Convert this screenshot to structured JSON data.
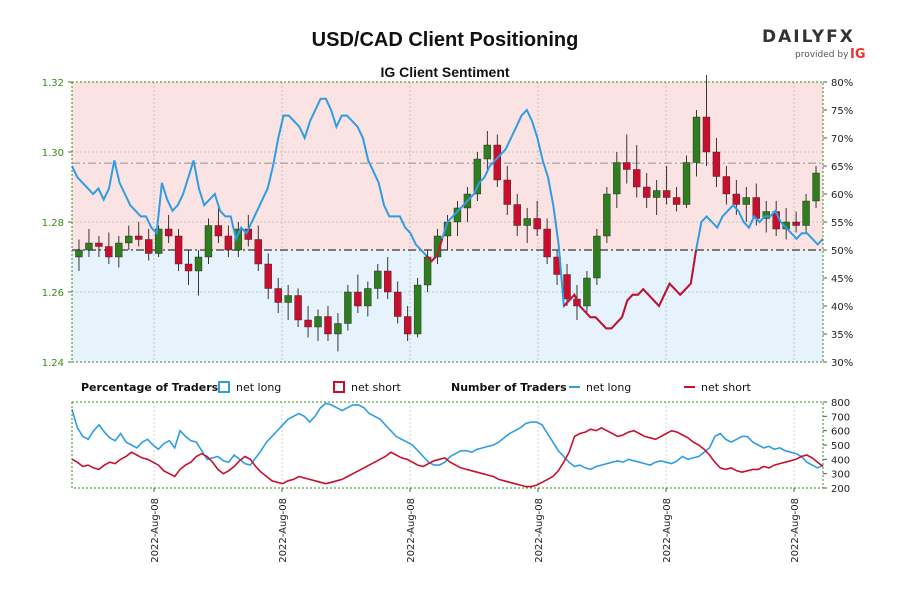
{
  "brand": {
    "logo_text": "DAILYFX",
    "provided_by": "provided by",
    "provider": "IG"
  },
  "chart_data": [
    {
      "type": "candlestick+line",
      "title": "USD/CAD Client Positioning",
      "subtitle": "IG Client Sentiment",
      "left_axis": {
        "ticks": [
          "1.24",
          "1.26",
          "1.28",
          "1.30",
          "1.32"
        ],
        "range": [
          1.24,
          1.32
        ]
      },
      "right_axis": {
        "ticks": [
          "30%",
          "35%",
          "40%",
          "45%",
          "50%",
          "55%",
          "60%",
          "65%",
          "70%",
          "75%",
          "80%"
        ],
        "range": [
          30,
          80
        ]
      },
      "x_ticks": [
        "2022-Aug-08",
        "2022-Aug-08",
        "2022-Aug-08",
        "2022-Aug-08",
        "2022-Aug-08",
        "2022-Aug-08"
      ],
      "reference_lines": {
        "upper_pct": 65.5,
        "mid_pct": 50
      },
      "colors": {
        "net_long": "#2e9de4",
        "net_short": "#c8102e",
        "up": "#2e7d1e",
        "down": "#c8102e",
        "long_zone": "#e6f3fc",
        "short_zone": "#fbe3e3"
      },
      "net_long_pct": [
        65,
        63,
        62,
        61,
        60,
        61,
        59,
        61,
        66,
        62,
        60,
        58,
        57,
        56,
        56,
        54,
        53,
        62,
        59,
        57,
        58,
        60,
        63,
        66,
        61,
        58,
        59,
        60,
        57,
        56,
        56,
        52,
        54,
        53,
        55,
        57,
        59,
        61,
        65,
        70,
        74,
        74,
        73,
        72,
        70,
        73,
        75,
        77,
        77,
        75,
        72,
        74,
        74,
        73,
        72,
        70,
        66,
        64,
        62,
        58,
        56,
        56,
        56,
        54,
        53,
        51,
        50,
        49,
        48,
        49,
        52,
        55,
        56,
        57,
        58,
        59,
        60,
        62,
        63,
        65,
        66,
        67,
        68,
        70,
        72,
        74,
        75,
        73,
        70,
        66,
        63,
        58,
        51,
        40,
        41,
        42,
        40,
        39,
        38,
        38,
        37,
        36,
        36,
        37,
        38,
        41,
        42,
        42,
        43,
        42,
        41,
        40,
        42,
        44,
        43,
        42,
        43,
        44,
        50,
        55,
        56,
        55,
        54,
        56,
        57,
        58,
        57,
        55,
        54,
        56,
        55,
        56,
        56,
        57,
        55,
        54,
        53,
        52,
        53,
        53,
        52,
        51,
        52
      ],
      "net_long_count": [
        750,
        620,
        560,
        540,
        600,
        640,
        590,
        550,
        530,
        580,
        520,
        500,
        480,
        520,
        540,
        500,
        470,
        510,
        530,
        480,
        600,
        560,
        530,
        520,
        460,
        400,
        410,
        420,
        390,
        380,
        430,
        400,
        370,
        360,
        410,
        460,
        520,
        560,
        600,
        640,
        680,
        700,
        720,
        700,
        660,
        700,
        760,
        790,
        780,
        760,
        740,
        760,
        780,
        780,
        760,
        720,
        700,
        680,
        640,
        600,
        560,
        540,
        520,
        500,
        460,
        420,
        380,
        360,
        360,
        380,
        420,
        440,
        460,
        460,
        450,
        470,
        480,
        490,
        500,
        520,
        550,
        580,
        600,
        620,
        650,
        660,
        660,
        640,
        580,
        520,
        460,
        420,
        380,
        350,
        360,
        340,
        330,
        350,
        360,
        370,
        380,
        390,
        380,
        400,
        390,
        380,
        370,
        360,
        380,
        390,
        380,
        370,
        390,
        420,
        400,
        410,
        420,
        450,
        480,
        560,
        580,
        540,
        520,
        540,
        560,
        560,
        520,
        500,
        480,
        490,
        470,
        480,
        460,
        450,
        440,
        420,
        380,
        360,
        340,
        360
      ],
      "net_short_count": [
        400,
        380,
        350,
        360,
        340,
        330,
        360,
        380,
        370,
        400,
        420,
        450,
        430,
        410,
        400,
        380,
        360,
        320,
        300,
        280,
        330,
        360,
        380,
        420,
        440,
        420,
        380,
        330,
        300,
        320,
        350,
        390,
        420,
        400,
        350,
        310,
        280,
        250,
        240,
        230,
        250,
        260,
        280,
        270,
        260,
        250,
        240,
        230,
        240,
        250,
        260,
        280,
        300,
        320,
        340,
        360,
        380,
        400,
        420,
        450,
        430,
        410,
        400,
        380,
        360,
        350,
        370,
        390,
        400,
        410,
        380,
        360,
        340,
        330,
        320,
        310,
        300,
        290,
        280,
        260,
        250,
        240,
        230,
        220,
        210,
        210,
        220,
        240,
        260,
        280,
        320,
        380,
        450,
        560,
        580,
        590,
        610,
        600,
        620,
        600,
        580,
        560,
        570,
        590,
        600,
        580,
        560,
        550,
        540,
        560,
        580,
        600,
        590,
        570,
        550,
        520,
        500,
        470,
        430,
        380,
        340,
        330,
        340,
        320,
        310,
        320,
        330,
        330,
        350,
        340,
        360,
        370,
        380,
        390,
        400,
        420,
        430,
        410,
        380,
        350
      ],
      "candles": [
        [
          1.27,
          1.275,
          1.266,
          1.272
        ],
        [
          1.272,
          1.278,
          1.27,
          1.274
        ],
        [
          1.274,
          1.276,
          1.27,
          1.273
        ],
        [
          1.273,
          1.277,
          1.268,
          1.27
        ],
        [
          1.27,
          1.276,
          1.267,
          1.274
        ],
        [
          1.274,
          1.279,
          1.272,
          1.276
        ],
        [
          1.276,
          1.28,
          1.273,
          1.275
        ],
        [
          1.275,
          1.278,
          1.269,
          1.271
        ],
        [
          1.271,
          1.279,
          1.27,
          1.278
        ],
        [
          1.278,
          1.282,
          1.274,
          1.276
        ],
        [
          1.276,
          1.278,
          1.266,
          1.268
        ],
        [
          1.268,
          1.272,
          1.262,
          1.266
        ],
        [
          1.266,
          1.272,
          1.259,
          1.27
        ],
        [
          1.27,
          1.281,
          1.268,
          1.279
        ],
        [
          1.279,
          1.285,
          1.274,
          1.276
        ],
        [
          1.276,
          1.279,
          1.27,
          1.272
        ],
        [
          1.272,
          1.28,
          1.27,
          1.278
        ],
        [
          1.278,
          1.282,
          1.273,
          1.275
        ],
        [
          1.275,
          1.279,
          1.266,
          1.268
        ],
        [
          1.268,
          1.271,
          1.258,
          1.261
        ],
        [
          1.261,
          1.264,
          1.254,
          1.257
        ],
        [
          1.257,
          1.262,
          1.252,
          1.259
        ],
        [
          1.259,
          1.261,
          1.25,
          1.252
        ],
        [
          1.252,
          1.256,
          1.247,
          1.25
        ],
        [
          1.25,
          1.255,
          1.246,
          1.253
        ],
        [
          1.253,
          1.256,
          1.246,
          1.248
        ],
        [
          1.248,
          1.254,
          1.243,
          1.251
        ],
        [
          1.251,
          1.262,
          1.249,
          1.26
        ],
        [
          1.26,
          1.265,
          1.254,
          1.256
        ],
        [
          1.256,
          1.263,
          1.253,
          1.261
        ],
        [
          1.261,
          1.268,
          1.258,
          1.266
        ],
        [
          1.266,
          1.27,
          1.258,
          1.26
        ],
        [
          1.26,
          1.263,
          1.251,
          1.253
        ],
        [
          1.253,
          1.256,
          1.246,
          1.248
        ],
        [
          1.248,
          1.264,
          1.247,
          1.262
        ],
        [
          1.262,
          1.272,
          1.26,
          1.27
        ],
        [
          1.27,
          1.278,
          1.268,
          1.276
        ],
        [
          1.276,
          1.282,
          1.272,
          1.28
        ],
        [
          1.28,
          1.286,
          1.276,
          1.284
        ],
        [
          1.284,
          1.29,
          1.28,
          1.288
        ],
        [
          1.288,
          1.3,
          1.286,
          1.298
        ],
        [
          1.298,
          1.306,
          1.294,
          1.302
        ],
        [
          1.302,
          1.305,
          1.29,
          1.292
        ],
        [
          1.292,
          1.296,
          1.282,
          1.285
        ],
        [
          1.285,
          1.288,
          1.276,
          1.279
        ],
        [
          1.279,
          1.284,
          1.274,
          1.281
        ],
        [
          1.281,
          1.286,
          1.276,
          1.278
        ],
        [
          1.278,
          1.281,
          1.268,
          1.27
        ],
        [
          1.27,
          1.272,
          1.262,
          1.265
        ],
        [
          1.265,
          1.268,
          1.256,
          1.258
        ],
        [
          1.258,
          1.262,
          1.252,
          1.256
        ],
        [
          1.256,
          1.266,
          1.254,
          1.264
        ],
        [
          1.264,
          1.278,
          1.262,
          1.276
        ],
        [
          1.276,
          1.29,
          1.274,
          1.288
        ],
        [
          1.288,
          1.3,
          1.284,
          1.297
        ],
        [
          1.297,
          1.305,
          1.291,
          1.295
        ],
        [
          1.295,
          1.302,
          1.287,
          1.29
        ],
        [
          1.29,
          1.294,
          1.284,
          1.287
        ],
        [
          1.287,
          1.292,
          1.282,
          1.289
        ],
        [
          1.289,
          1.296,
          1.285,
          1.287
        ],
        [
          1.287,
          1.29,
          1.283,
          1.285
        ],
        [
          1.285,
          1.299,
          1.284,
          1.297
        ],
        [
          1.297,
          1.312,
          1.293,
          1.31
        ],
        [
          1.31,
          1.322,
          1.296,
          1.3
        ],
        [
          1.3,
          1.304,
          1.29,
          1.293
        ],
        [
          1.293,
          1.296,
          1.285,
          1.288
        ],
        [
          1.288,
          1.292,
          1.282,
          1.285
        ],
        [
          1.285,
          1.29,
          1.28,
          1.287
        ],
        [
          1.287,
          1.291,
          1.279,
          1.281
        ],
        [
          1.281,
          1.286,
          1.277,
          1.283
        ],
        [
          1.283,
          1.286,
          1.276,
          1.278
        ],
        [
          1.278,
          1.284,
          1.275,
          1.28
        ],
        [
          1.28,
          1.283,
          1.277,
          1.279
        ],
        [
          1.279,
          1.288,
          1.277,
          1.286
        ],
        [
          1.286,
          1.296,
          1.284,
          1.294
        ]
      ]
    }
  ],
  "legend": {
    "pct_heading": "Percentage of Traders",
    "count_heading": "Number of Traders",
    "net_long": "net long",
    "net_short": "net short"
  },
  "lower_axis": {
    "ticks": [
      "200",
      "300",
      "400",
      "500",
      "600",
      "700",
      "800"
    ]
  }
}
